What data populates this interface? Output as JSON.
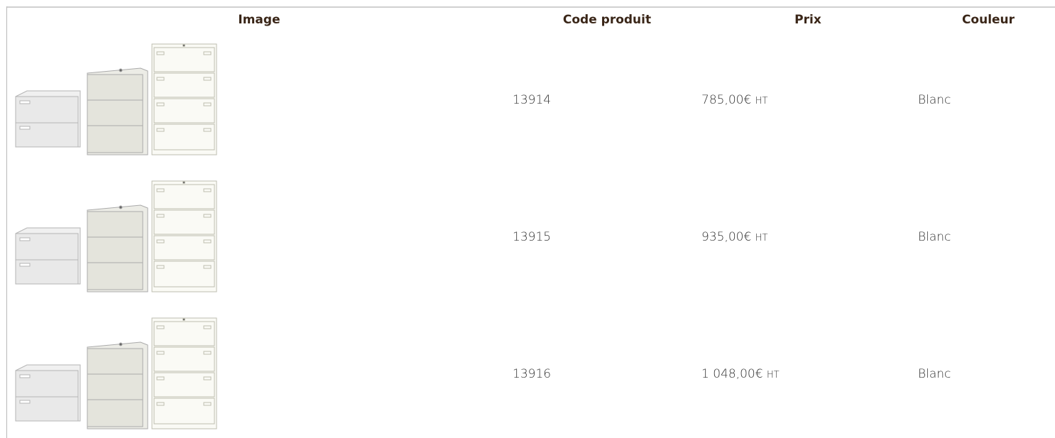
{
  "table": {
    "headers": [
      "Image",
      "Code produit",
      "Prix",
      "Couleur"
    ],
    "rows": [
      {
        "code": "13914",
        "price": "785,00€",
        "tax": "HT",
        "color": "Blanc"
      },
      {
        "code": "13915",
        "price": "935,00€",
        "tax": "HT",
        "color": "Blanc"
      },
      {
        "code": "13916",
        "price": "1 048,00€",
        "tax": "HT",
        "color": "Blanc"
      }
    ]
  }
}
